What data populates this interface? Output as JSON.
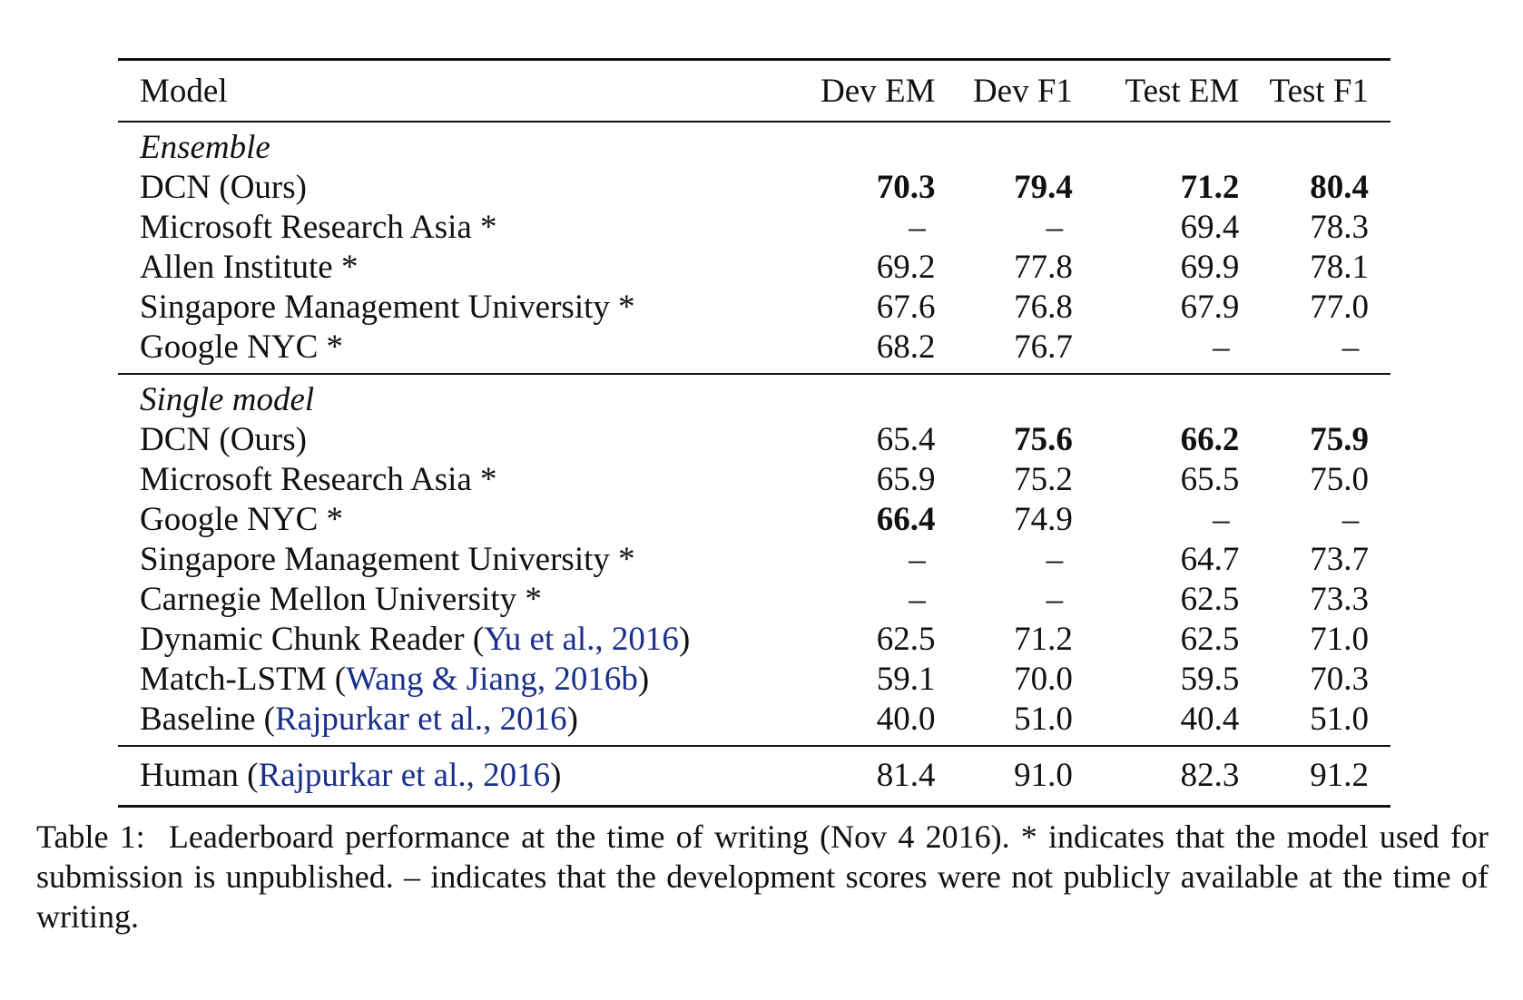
{
  "headers": {
    "model": "Model",
    "dev_em": "Dev EM",
    "dev_f1": "Dev F1",
    "test_em": "Test EM",
    "test_f1": "Test F1"
  },
  "ensemble": {
    "section_label": "Ensemble",
    "rows": [
      {
        "model": "DCN (Ours)",
        "dev_em": "70.3",
        "dev_f1": "79.4",
        "test_em": "71.2",
        "test_f1": "80.4",
        "bold": [
          "dev_em",
          "dev_f1",
          "test_em",
          "test_f1"
        ]
      },
      {
        "model": "Microsoft Research Asia *",
        "dev_em": "–",
        "dev_f1": "–",
        "test_em": "69.4",
        "test_f1": "78.3"
      },
      {
        "model": "Allen Institute *",
        "dev_em": "69.2",
        "dev_f1": "77.8",
        "test_em": "69.9",
        "test_f1": "78.1"
      },
      {
        "model": "Singapore Management University *",
        "dev_em": "67.6",
        "dev_f1": "76.8",
        "test_em": "67.9",
        "test_f1": "77.0"
      },
      {
        "model": "Google NYC *",
        "dev_em": "68.2",
        "dev_f1": "76.7",
        "test_em": "–",
        "test_f1": "–"
      }
    ]
  },
  "single": {
    "section_label": "Single model",
    "rows": [
      {
        "model": "DCN (Ours)",
        "dev_em": "65.4",
        "dev_f1": "75.6",
        "test_em": "66.2",
        "test_f1": "75.9",
        "bold": [
          "dev_f1",
          "test_em",
          "test_f1"
        ]
      },
      {
        "model": "Microsoft Research Asia *",
        "dev_em": "65.9",
        "dev_f1": "75.2",
        "test_em": "65.5",
        "test_f1": "75.0"
      },
      {
        "model": "Google NYC *",
        "dev_em": "66.4",
        "dev_f1": "74.9",
        "test_em": "–",
        "test_f1": "–",
        "bold": [
          "dev_em"
        ]
      },
      {
        "model": "Singapore Management University *",
        "dev_em": "–",
        "dev_f1": "–",
        "test_em": "64.7",
        "test_f1": "73.7"
      },
      {
        "model": "Carnegie Mellon University *",
        "dev_em": "–",
        "dev_f1": "–",
        "test_em": "62.5",
        "test_f1": "73.3"
      },
      {
        "model": "Dynamic Chunk Reader (",
        "cite": "Yu et al., 2016",
        "model_end": ")",
        "dev_em": "62.5",
        "dev_f1": "71.2",
        "test_em": "62.5",
        "test_f1": "71.0"
      },
      {
        "model": "Match-LSTM (",
        "cite": "Wang & Jiang, 2016b",
        "model_end": ")",
        "dev_em": "59.1",
        "dev_f1": "70.0",
        "test_em": "59.5",
        "test_f1": "70.3"
      },
      {
        "model": "Baseline (",
        "cite": "Rajpurkar et al., 2016",
        "model_end": ")",
        "dev_em": "40.0",
        "dev_f1": "51.0",
        "test_em": "40.4",
        "test_f1": "51.0"
      }
    ]
  },
  "human": {
    "model": "Human (",
    "cite": "Rajpurkar et al., 2016",
    "model_end": ")",
    "dev_em": "81.4",
    "dev_f1": "91.0",
    "test_em": "82.3",
    "test_f1": "91.2"
  },
  "caption": {
    "label": "Table 1:",
    "text": "Leaderboard performance at the time of writing (Nov 4 2016). * indicates that the model used for submission is unpublished. – indicates that the development scores were not publicly available at the time of writing."
  },
  "colors": {
    "citation": "#1a2f8a",
    "text": "#111111"
  }
}
